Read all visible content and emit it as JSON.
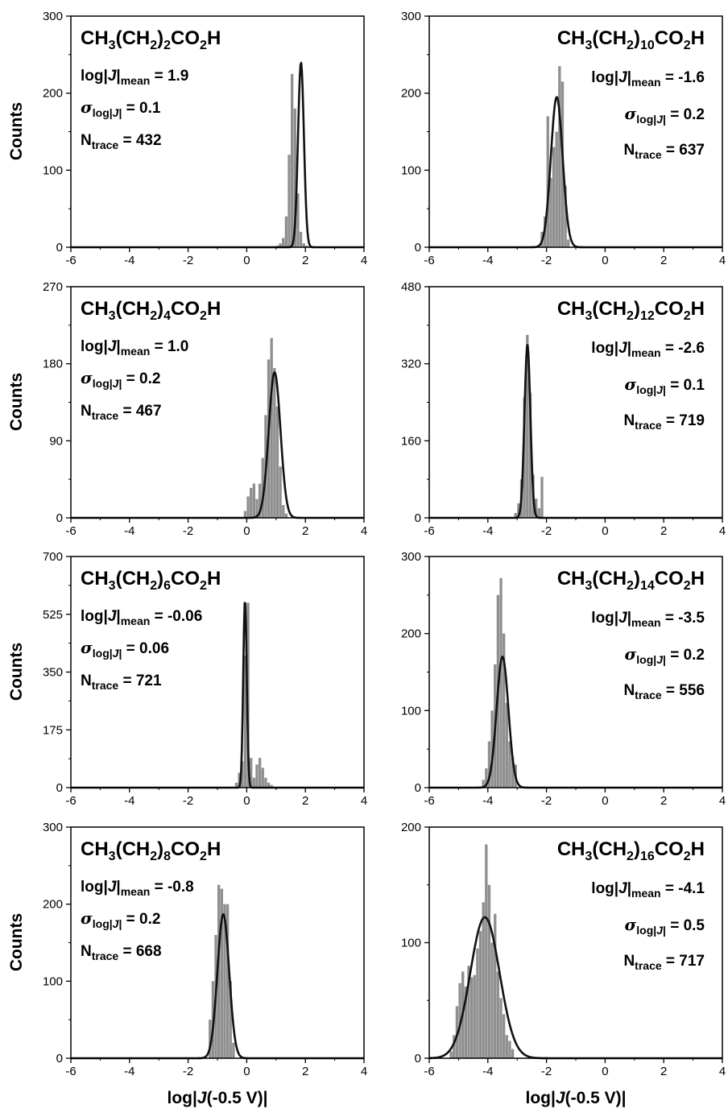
{
  "figure": {
    "ylabel": "Counts",
    "xlabel_left": "log|J(-0.5 V)|",
    "xlabel_right": "log|J(-0.5 V)|"
  },
  "chart_data": [
    {
      "type": "bar",
      "title_parts": [
        "CH",
        "3",
        "(CH",
        "2",
        ")",
        "2",
        "CO",
        "2",
        "H"
      ],
      "mean_label": "log|J|mean = 1.9",
      "mean_value": "1.9",
      "sigma_label": "σlog|J| = 0.1",
      "sigma_value": "0.1",
      "n_label": "Ntrace = 432",
      "n_value": "432",
      "xlabel": "",
      "ylabel": "Counts",
      "xlim": [
        -6,
        4
      ],
      "ylim": [
        0,
        300
      ],
      "x_ticks": [
        "-6",
        "-4",
        "-2",
        "0",
        "2",
        "4"
      ],
      "y_ticks": [
        "0",
        "100",
        "200",
        "300"
      ],
      "bins": {
        "start": 1.0,
        "width": 0.1,
        "counts": [
          2,
          5,
          12,
          40,
          120,
          225,
          180,
          70,
          20,
          5,
          2
        ]
      },
      "fit": {
        "amplitude": 240,
        "mean": 1.85,
        "sigma": 0.1
      },
      "text_align": "left"
    },
    {
      "type": "bar",
      "title_parts": [
        "CH",
        "3",
        "(CH",
        "2",
        ")",
        "10",
        "CO",
        "2",
        "H"
      ],
      "mean_label": "log|J|mean = -1.6",
      "mean_value": "-1.6",
      "sigma_label": "σlog|J| = 0.2",
      "sigma_value": "0.2",
      "n_label": "Ntrace = 637",
      "n_value": "637",
      "xlabel": "",
      "ylabel": "",
      "xlim": [
        -6,
        4
      ],
      "ylim": [
        0,
        300
      ],
      "x_ticks": [
        "-6",
        "-4",
        "-2",
        "0",
        "2",
        "4"
      ],
      "y_ticks": [
        "0",
        "100",
        "200",
        "300"
      ],
      "bins": {
        "start": -2.2,
        "width": 0.1,
        "counts": [
          20,
          40,
          170,
          90,
          130,
          150,
          235,
          215,
          80,
          10
        ]
      },
      "fit": {
        "amplitude": 195,
        "mean": -1.65,
        "sigma": 0.2
      },
      "text_align": "right"
    },
    {
      "type": "bar",
      "title_parts": [
        "CH",
        "3",
        "(CH",
        "2",
        ")",
        "4",
        "CO",
        "2",
        "H"
      ],
      "mean_label": "log|J|mean = 1.0",
      "mean_value": "1.0",
      "sigma_label": "σlog|J| = 0.2",
      "sigma_value": "0.2",
      "n_label": "Ntrace = 467",
      "n_value": "467",
      "xlabel": "",
      "ylabel": "Counts",
      "xlim": [
        -6,
        4
      ],
      "ylim": [
        0,
        270
      ],
      "x_ticks": [
        "-6",
        "-4",
        "-2",
        "0",
        "2",
        "4"
      ],
      "y_ticks": [
        "0",
        "90",
        "180",
        "270"
      ],
      "bins": {
        "start": -0.1,
        "width": 0.1,
        "counts": [
          8,
          25,
          35,
          40,
          22,
          40,
          70,
          120,
          185,
          210,
          175,
          130,
          60,
          15,
          5
        ]
      },
      "fit": {
        "amplitude": 170,
        "mean": 0.95,
        "sigma": 0.2
      },
      "text_align": "left"
    },
    {
      "type": "bar",
      "title_parts": [
        "CH",
        "3",
        "(CH",
        "2",
        ")",
        "12",
        "CO",
        "2",
        "H"
      ],
      "mean_label": "log|J|mean = -2.6",
      "mean_value": "-2.6",
      "sigma_label": "σlog|J| = 0.1",
      "sigma_value": "0.1",
      "n_label": "Ntrace = 719",
      "n_value": "719",
      "xlabel": "",
      "ylabel": "",
      "xlim": [
        -6,
        4
      ],
      "ylim": [
        0,
        480
      ],
      "x_ticks": [
        "-6",
        "-4",
        "-2",
        "0",
        "2",
        "4"
      ],
      "y_ticks": [
        "0",
        "160",
        "320",
        "480"
      ],
      "bins": {
        "start": -3.1,
        "width": 0.1,
        "counts": [
          10,
          30,
          80,
          250,
          380,
          260,
          90,
          40,
          20,
          85
        ]
      },
      "fit": {
        "amplitude": 360,
        "mean": -2.65,
        "sigma": 0.1
      },
      "text_align": "right"
    },
    {
      "type": "bar",
      "title_parts": [
        "CH",
        "3",
        "(CH",
        "2",
        ")",
        "6",
        "CO",
        "2",
        "H"
      ],
      "mean_label": "log|J|mean = -0.06",
      "mean_value": "-0.06",
      "sigma_label": "σlog|J| = 0.06",
      "sigma_value": "0.06",
      "n_label": "Ntrace = 721",
      "n_value": "721",
      "xlabel": "",
      "ylabel": "Counts",
      "xlim": [
        -6,
        4
      ],
      "ylim": [
        0,
        700
      ],
      "x_ticks": [
        "-6",
        "-4",
        "-2",
        "0",
        "2",
        "4"
      ],
      "y_ticks": [
        "0",
        "175",
        "350",
        "525",
        "700"
      ],
      "bins": {
        "start": -0.4,
        "width": 0.1,
        "counts": [
          15,
          45,
          80,
          400,
          560,
          90,
          30,
          70,
          90,
          60,
          30,
          15,
          8
        ]
      },
      "fit": {
        "amplitude": 570,
        "mean": -0.06,
        "sigma": 0.06
      },
      "text_align": "left"
    },
    {
      "type": "bar",
      "title_parts": [
        "CH",
        "3",
        "(CH",
        "2",
        ")",
        "14",
        "CO",
        "2",
        "H"
      ],
      "mean_label": "log|J|mean = -3.5",
      "mean_value": "-3.5",
      "sigma_label": "σlog|J| = 0.2",
      "sigma_value": "0.2",
      "n_label": "Ntrace = 556",
      "n_value": "556",
      "xlabel": "",
      "ylabel": "",
      "xlim": [
        -6,
        4
      ],
      "ylim": [
        0,
        300
      ],
      "x_ticks": [
        "-6",
        "-4",
        "-2",
        "0",
        "2",
        "4"
      ],
      "y_ticks": [
        "0",
        "100",
        "200",
        "300"
      ],
      "bins": {
        "start": -4.2,
        "width": 0.1,
        "counts": [
          10,
          25,
          60,
          100,
          160,
          250,
          272,
          200,
          110,
          60,
          40,
          30
        ]
      },
      "fit": {
        "amplitude": 170,
        "mean": -3.5,
        "sigma": 0.2
      },
      "text_align": "right"
    },
    {
      "type": "bar",
      "title_parts": [
        "CH",
        "3",
        "(CH",
        "2",
        ")",
        "8",
        "CO",
        "2",
        "H"
      ],
      "mean_label": "log|J|mean = -0.8",
      "mean_value": "-0.8",
      "sigma_label": "σlog|J| = 0.2",
      "sigma_value": "0.2",
      "n_label": "Ntrace = 668",
      "n_value": "668",
      "xlabel": "log|J(-0.5 V)|",
      "ylabel": "Counts",
      "xlim": [
        -6,
        4
      ],
      "ylim": [
        0,
        300
      ],
      "x_ticks": [
        "-6",
        "-4",
        "-2",
        "0",
        "2",
        "4"
      ],
      "y_ticks": [
        "0",
        "100",
        "200",
        "300"
      ],
      "bins": {
        "start": -1.3,
        "width": 0.1,
        "counts": [
          50,
          100,
          160,
          225,
          220,
          200,
          200,
          100,
          20
        ]
      },
      "fit": {
        "amplitude": 187,
        "mean": -0.8,
        "sigma": 0.2
      },
      "text_align": "left"
    },
    {
      "type": "bar",
      "title_parts": [
        "CH",
        "3",
        "(CH",
        "2",
        ")",
        "16",
        "CO",
        "2",
        "H"
      ],
      "mean_label": "log|J|mean = -4.1",
      "mean_value": "-4.1",
      "sigma_label": "σlog|J| = 0.5",
      "sigma_value": "0.5",
      "n_label": "Ntrace = 717",
      "n_value": "717",
      "xlabel": "log|J(-0.5 V)|",
      "ylabel": "",
      "xlim": [
        -6,
        4
      ],
      "ylim": [
        0,
        200
      ],
      "x_ticks": [
        "-6",
        "-4",
        "-2",
        "0",
        "2",
        "4"
      ],
      "y_ticks": [
        "0",
        "100",
        "200"
      ],
      "bins": {
        "start": -5.3,
        "width": 0.1,
        "counts": [
          6,
          20,
          45,
          65,
          75,
          62,
          80,
          70,
          72,
          95,
          110,
          135,
          185,
          150,
          100,
          125,
          75,
          52,
          38,
          20,
          15,
          8
        ]
      },
      "fit": {
        "amplitude": 122,
        "mean": -4.1,
        "sigma": 0.5
      },
      "text_align": "right"
    }
  ]
}
